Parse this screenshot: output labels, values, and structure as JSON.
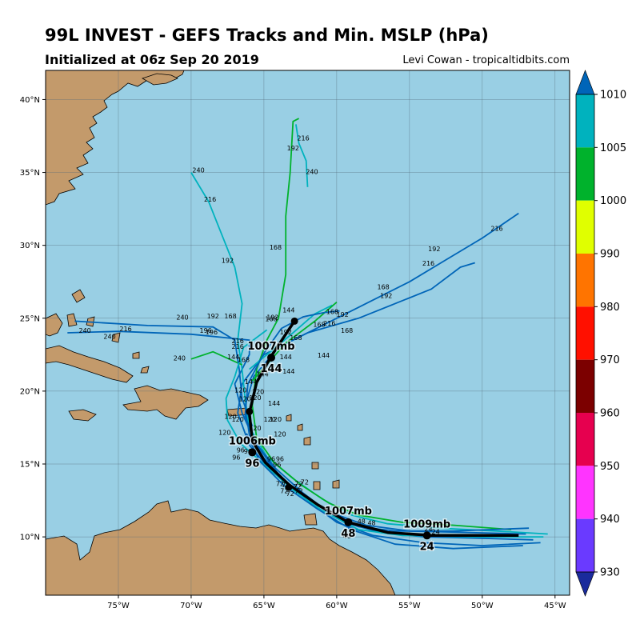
{
  "header": {
    "title": "99L INVEST - GEFS Tracks and Min. MSLP (hPa)",
    "subtitle": "Initialized at 06z Sep 20 2019",
    "credit": "Levi Cowan - tropicaltidbits.com"
  },
  "map": {
    "lon_range": [
      -80,
      -44
    ],
    "lat_range": [
      6,
      42
    ],
    "ocean_color": "#99cfe4",
    "land_color": "#c39a6b",
    "lon_ticks": [
      "75°W",
      "70°W",
      "65°W",
      "60°W",
      "55°W",
      "50°W",
      "45°W"
    ],
    "lat_ticks": [
      "40°N",
      "35°N",
      "30°N",
      "25°N",
      "20°N",
      "15°N",
      "10°N"
    ],
    "grid": true
  },
  "colorbar": {
    "levels": [
      "1010",
      "1005",
      "1000",
      "990",
      "980",
      "970",
      "960",
      "950",
      "940",
      "930"
    ],
    "colors": [
      "#0065b8",
      "#00b2be",
      "#00b22c",
      "#e0ff00",
      "#ff7400",
      "#ff1000",
      "#7c0000",
      "#e6004f",
      "#ff34ff",
      "#6a3aff",
      "#1a2b9c"
    ]
  },
  "chart_data": {
    "type": "map-tracks",
    "mean_track": {
      "points": [
        [
          -47.5,
          10.1
        ],
        [
          -50.5,
          10.1
        ],
        [
          -53.5,
          10.1
        ],
        [
          -56.5,
          10.3
        ],
        [
          -59.2,
          11.0
        ],
        [
          -61.3,
          12.2
        ],
        [
          -63.3,
          13.6
        ],
        [
          -64.9,
          15.1
        ],
        [
          -65.8,
          16.6
        ],
        [
          -66.0,
          18.5
        ],
        [
          -65.5,
          20.6
        ],
        [
          -64.5,
          22.4
        ],
        [
          -62.9,
          24.8
        ]
      ],
      "markers": [
        {
          "lon": -53.8,
          "lat": 10.1,
          "hour": "24",
          "pressure": "1009mb"
        },
        {
          "lon": -59.2,
          "lat": 11.0,
          "hour": "48",
          "pressure": "1007mb"
        },
        {
          "lon": -65.8,
          "lat": 15.8,
          "hour": "96",
          "pressure": "1006mb"
        },
        {
          "lon": -64.5,
          "lat": 22.3,
          "hour": "144",
          "pressure": "1007mb"
        }
      ],
      "extra_dots": [
        [
          -63.3,
          13.4
        ],
        [
          -66.0,
          18.6
        ],
        [
          -62.9,
          24.8
        ]
      ]
    },
    "members": [
      {
        "color": "#0065b8",
        "points": [
          [
            -46.5,
            9.8
          ],
          [
            -50,
            9.9
          ],
          [
            -54,
            10.0
          ],
          [
            -57,
            10.3
          ],
          [
            -59.5,
            11.0
          ],
          [
            -61.5,
            12.3
          ],
          [
            -63.5,
            13.8
          ],
          [
            -65,
            15.4
          ],
          [
            -66,
            17
          ],
          [
            -66.3,
            19
          ],
          [
            -65.7,
            21
          ],
          [
            -64,
            23
          ],
          [
            -61,
            24.5
          ],
          [
            -58,
            26
          ],
          [
            -55,
            27.5
          ],
          [
            -52.5,
            29
          ],
          [
            -50,
            30.5
          ],
          [
            -47.5,
            32.2
          ]
        ]
      },
      {
        "color": "#0065b8",
        "points": [
          [
            -47,
            10.2
          ],
          [
            -51,
            10.3
          ],
          [
            -55,
            10.4
          ],
          [
            -58,
            10.8
          ],
          [
            -60.5,
            11.7
          ],
          [
            -62.5,
            13
          ],
          [
            -64.5,
            14.5
          ],
          [
            -66,
            16.3
          ],
          [
            -66.8,
            18.5
          ],
          [
            -66.5,
            20.5
          ],
          [
            -65,
            22.5
          ],
          [
            -62,
            24
          ],
          [
            -58.5,
            25
          ],
          [
            -56,
            26
          ],
          [
            -53.5,
            27
          ],
          [
            -51.5,
            28.5
          ],
          [
            -50.5,
            28.8
          ]
        ]
      },
      {
        "color": "#0065b8",
        "points": [
          [
            -46,
            9.6
          ],
          [
            -50,
            9.4
          ],
          [
            -54,
            9.6
          ],
          [
            -57.5,
            10.1
          ],
          [
            -60,
            11
          ],
          [
            -62,
            12.5
          ],
          [
            -64,
            14.3
          ],
          [
            -65.5,
            16.3
          ],
          [
            -66.5,
            18.5
          ],
          [
            -67,
            20.5
          ],
          [
            -66,
            22.5
          ],
          [
            -66,
            23.5
          ],
          [
            -70,
            23.9
          ],
          [
            -75,
            24.1
          ],
          [
            -78.5,
            24
          ]
        ]
      },
      {
        "color": "#00b2be",
        "points": [
          [
            -45.5,
            10.2
          ],
          [
            -49,
            10.4
          ],
          [
            -53,
            10.6
          ],
          [
            -56.5,
            10.9
          ],
          [
            -59,
            11.5
          ],
          [
            -61,
            12.6
          ],
          [
            -63,
            14
          ],
          [
            -64.8,
            15.5
          ],
          [
            -66,
            17.5
          ],
          [
            -66.3,
            19.5
          ],
          [
            -66.5,
            21.5
          ],
          [
            -66.8,
            23.5
          ],
          [
            -66.5,
            26
          ],
          [
            -67,
            28.5
          ],
          [
            -68,
            31
          ],
          [
            -68.8,
            33
          ],
          [
            -70,
            35
          ]
        ]
      },
      {
        "color": "#00b22c",
        "points": [
          [
            -48,
            10.5
          ],
          [
            -52,
            10.8
          ],
          [
            -55.5,
            11.0
          ],
          [
            -58.5,
            11.5
          ],
          [
            -60.5,
            12.3
          ],
          [
            -62.5,
            13.6
          ],
          [
            -64.3,
            15.1
          ],
          [
            -65.5,
            16.8
          ],
          [
            -65.8,
            19
          ],
          [
            -65.5,
            21.5
          ],
          [
            -64.8,
            23.5
          ],
          [
            -64,
            25
          ],
          [
            -63.5,
            28
          ],
          [
            -63.5,
            32
          ],
          [
            -63.2,
            35
          ],
          [
            -63.0,
            38.5
          ],
          [
            -62.6,
            38.7
          ]
        ]
      },
      {
        "color": "#00b2be",
        "points": [
          [
            -62.8,
            38.3
          ],
          [
            -62.6,
            37
          ],
          [
            -62.1,
            35.8
          ],
          [
            -62.0,
            34
          ]
        ]
      },
      {
        "color": "#00b22c",
        "points": [
          [
            -66.5,
            21.8
          ],
          [
            -68.5,
            22.7
          ],
          [
            -70,
            22.2
          ]
        ]
      },
      {
        "color": "#00b2be",
        "points": [
          [
            -66,
            21.5
          ],
          [
            -63,
            24
          ],
          [
            -61.5,
            25.3
          ],
          [
            -60.3,
            25.9
          ]
        ]
      },
      {
        "color": "#00b22c",
        "points": [
          [
            -65.8,
            20.7
          ],
          [
            -63.5,
            23.3
          ],
          [
            -61.5,
            24.8
          ],
          [
            -60,
            26.1
          ]
        ]
      },
      {
        "color": "#0065b8",
        "points": [
          [
            -65.8,
            17.6
          ],
          [
            -66.5,
            19.5
          ],
          [
            -66.7,
            21.5
          ],
          [
            -67,
            23.5
          ],
          [
            -68.5,
            24.4
          ],
          [
            -73,
            24.5
          ],
          [
            -78,
            24.8
          ]
        ]
      },
      {
        "color": "#0065b8",
        "points": [
          [
            -46.8,
            10.6
          ],
          [
            -52,
            10.4
          ],
          [
            -56,
            10.4
          ],
          [
            -58.5,
            10.7
          ],
          [
            -60.3,
            11.5
          ],
          [
            -62.3,
            13
          ],
          [
            -64.2,
            14.7
          ],
          [
            -65.6,
            16.5
          ],
          [
            -66.3,
            18.3
          ],
          [
            -66.1,
            20.5
          ],
          [
            -65.0,
            22.6
          ],
          [
            -63.8,
            24.3
          ],
          [
            -62.3,
            25.1
          ],
          [
            -60.8,
            25.4
          ],
          [
            -59.8,
            25.5
          ]
        ]
      },
      {
        "color": "#00b2be",
        "points": [
          [
            -45.8,
            10.0
          ],
          [
            -50.5,
            10.0
          ],
          [
            -55.5,
            10.1
          ],
          [
            -58.5,
            10.5
          ],
          [
            -61.0,
            11.8
          ],
          [
            -63.1,
            13.3
          ],
          [
            -64.9,
            14.9
          ],
          [
            -66.6,
            16.4
          ],
          [
            -67.5,
            18.0
          ],
          [
            -67.6,
            19.5
          ],
          [
            -67.0,
            21.0
          ],
          [
            -66.4,
            23.0
          ],
          [
            -64.8,
            24.2
          ]
        ]
      },
      {
        "color": "#0065b8",
        "points": [
          [
            -47.2,
            9.4
          ],
          [
            -52,
            9.2
          ],
          [
            -56,
            9.5
          ],
          [
            -59,
            10.5
          ],
          [
            -61.3,
            11.9
          ],
          [
            -63.6,
            13.5
          ],
          [
            -65.3,
            15.2
          ],
          [
            -66.2,
            17.1
          ]
        ]
      }
    ],
    "hour_labels": [
      {
        "lon": -62.3,
        "lat": 37.2,
        "t": "216"
      },
      {
        "lon": -63.0,
        "lat": 36.5,
        "t": "192"
      },
      {
        "lon": -61.7,
        "lat": 34.9,
        "t": "240"
      },
      {
        "lon": -69.5,
        "lat": 35.0,
        "t": "240"
      },
      {
        "lon": -68.7,
        "lat": 33.0,
        "t": "216"
      },
      {
        "lon": -67.5,
        "lat": 28.8,
        "t": "192"
      },
      {
        "lon": -64.2,
        "lat": 29.7,
        "t": "168"
      },
      {
        "lon": -49.0,
        "lat": 31.0,
        "t": "216"
      },
      {
        "lon": -53.3,
        "lat": 29.6,
        "t": "192"
      },
      {
        "lon": -53.7,
        "lat": 28.6,
        "t": "216"
      },
      {
        "lon": -56.8,
        "lat": 27.0,
        "t": "168"
      },
      {
        "lon": -56.6,
        "lat": 26.4,
        "t": "192"
      },
      {
        "lon": -77.3,
        "lat": 24.0,
        "t": "240"
      },
      {
        "lon": -74.5,
        "lat": 24.1,
        "t": "216"
      },
      {
        "lon": -75.6,
        "lat": 23.6,
        "t": "240"
      },
      {
        "lon": -70.6,
        "lat": 24.9,
        "t": "240"
      },
      {
        "lon": -68.5,
        "lat": 25.0,
        "t": "192"
      },
      {
        "lon": -67.3,
        "lat": 25.0,
        "t": "168"
      },
      {
        "lon": -69.0,
        "lat": 24.0,
        "t": "196"
      },
      {
        "lon": -68.6,
        "lat": 23.9,
        "t": "196"
      },
      {
        "lon": -66.8,
        "lat": 23.3,
        "t": "216"
      },
      {
        "lon": -66.8,
        "lat": 22.9,
        "t": "216"
      },
      {
        "lon": -64.5,
        "lat": 24.8,
        "t": "168"
      },
      {
        "lon": -63.3,
        "lat": 25.4,
        "t": "144"
      },
      {
        "lon": -60.3,
        "lat": 25.3,
        "t": "168"
      },
      {
        "lon": -59.6,
        "lat": 25.1,
        "t": "192"
      },
      {
        "lon": -60.5,
        "lat": 24.5,
        "t": "216"
      },
      {
        "lon": -61.2,
        "lat": 24.4,
        "t": "168"
      },
      {
        "lon": -59.3,
        "lat": 24.0,
        "t": "168"
      },
      {
        "lon": -60.9,
        "lat": 22.3,
        "t": "144"
      },
      {
        "lon": -63.5,
        "lat": 23.9,
        "t": "192"
      },
      {
        "lon": -64.4,
        "lat": 24.9,
        "t": "192"
      },
      {
        "lon": -62.8,
        "lat": 23.5,
        "t": "168"
      },
      {
        "lon": -63.5,
        "lat": 22.2,
        "t": "144"
      },
      {
        "lon": -63.3,
        "lat": 21.2,
        "t": "144"
      },
      {
        "lon": -66.4,
        "lat": 22.0,
        "t": "168"
      },
      {
        "lon": -67.1,
        "lat": 22.2,
        "t": "144"
      },
      {
        "lon": -70.8,
        "lat": 22.1,
        "t": "240"
      },
      {
        "lon": -65.1,
        "lat": 21.0,
        "t": "144"
      },
      {
        "lon": -65.9,
        "lat": 20.5,
        "t": "144"
      },
      {
        "lon": -66.6,
        "lat": 19.9,
        "t": "120"
      },
      {
        "lon": -65.4,
        "lat": 19.8,
        "t": "120"
      },
      {
        "lon": -65.6,
        "lat": 19.4,
        "t": "120"
      },
      {
        "lon": -64.3,
        "lat": 19.0,
        "t": "144"
      },
      {
        "lon": -66.3,
        "lat": 19.3,
        "t": "120"
      },
      {
        "lon": -67.3,
        "lat": 18.1,
        "t": "120"
      },
      {
        "lon": -66.8,
        "lat": 17.9,
        "t": "120"
      },
      {
        "lon": -64.6,
        "lat": 17.9,
        "t": "120"
      },
      {
        "lon": -64.2,
        "lat": 17.9,
        "t": "120"
      },
      {
        "lon": -67.7,
        "lat": 17.0,
        "t": "120"
      },
      {
        "lon": -65.6,
        "lat": 17.3,
        "t": "120"
      },
      {
        "lon": -63.9,
        "lat": 16.9,
        "t": "120"
      },
      {
        "lon": -66.6,
        "lat": 15.8,
        "t": "96"
      },
      {
        "lon": -66.1,
        "lat": 15.7,
        "t": "96"
      },
      {
        "lon": -66.9,
        "lat": 15.3,
        "t": "96"
      },
      {
        "lon": -64.5,
        "lat": 15.2,
        "t": "96"
      },
      {
        "lon": -63.9,
        "lat": 15.2,
        "t": "96"
      },
      {
        "lon": -64.1,
        "lat": 14.8,
        "t": "96"
      },
      {
        "lon": -63.9,
        "lat": 13.5,
        "t": "72"
      },
      {
        "lon": -63.5,
        "lat": 13.4,
        "t": "72"
      },
      {
        "lon": -62.2,
        "lat": 13.6,
        "t": "72"
      },
      {
        "lon": -62.7,
        "lat": 13.3,
        "t": "72"
      },
      {
        "lon": -62.6,
        "lat": 13.5,
        "t": "72"
      },
      {
        "lon": -63.6,
        "lat": 13.0,
        "t": "72"
      },
      {
        "lon": -63.2,
        "lat": 12.8,
        "t": "72"
      },
      {
        "lon": -62.6,
        "lat": 13.0,
        "t": "72"
      },
      {
        "lon": -58.3,
        "lat": 10.9,
        "t": "48"
      },
      {
        "lon": -57.6,
        "lat": 10.8,
        "t": "48"
      },
      {
        "lon": -59.3,
        "lat": 9.9,
        "t": "48"
      },
      {
        "lon": -53.7,
        "lat": 10.4,
        "t": "24"
      },
      {
        "lon": -53.2,
        "lat": 10.2,
        "t": "24"
      }
    ]
  }
}
